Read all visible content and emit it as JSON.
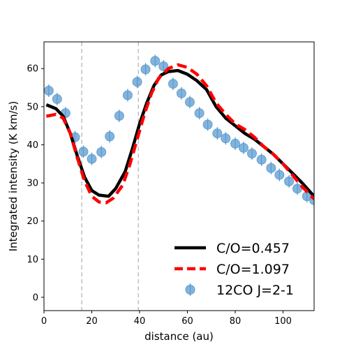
{
  "chart_data": {
    "type": "line",
    "title": "",
    "xlabel": "distance (au)",
    "ylabel": "Integrated intensity (K km/s)",
    "xlim": [
      0,
      113
    ],
    "ylim": [
      -3.5,
      67
    ],
    "xticks": [
      0,
      20,
      40,
      60,
      80,
      100
    ],
    "yticks": [
      0,
      10,
      20,
      30,
      40,
      50,
      60
    ],
    "grid": false,
    "legend_position": "lower-right",
    "vlines": [
      {
        "x": 15.8,
        "color": "#c0c0c0",
        "style": "dashed"
      },
      {
        "x": 39.5,
        "color": "#c0c0c0",
        "style": "dashed"
      }
    ],
    "series": [
      {
        "name": "C/O=0.457",
        "kind": "line",
        "color": "#000000",
        "style": "solid",
        "points": [
          [
            1,
            50.5
          ],
          [
            5,
            49.5
          ],
          [
            8,
            47.5
          ],
          [
            11,
            43
          ],
          [
            14,
            37
          ],
          [
            17,
            31.5
          ],
          [
            20,
            28
          ],
          [
            23,
            26.8
          ],
          [
            27,
            26.5
          ],
          [
            30,
            28.5
          ],
          [
            34,
            33
          ],
          [
            37,
            39
          ],
          [
            40,
            45.5
          ],
          [
            43,
            51
          ],
          [
            46,
            55.5
          ],
          [
            49,
            58.3
          ],
          [
            52,
            59.2
          ],
          [
            56,
            59.5
          ],
          [
            60,
            58.5
          ],
          [
            64,
            56.8
          ],
          [
            68,
            54.5
          ],
          [
            72,
            50
          ],
          [
            76,
            47
          ],
          [
            80,
            45
          ],
          [
            84,
            43
          ],
          [
            88,
            41.5
          ],
          [
            92,
            39.5
          ],
          [
            96,
            37.5
          ],
          [
            100,
            35
          ],
          [
            104,
            32.5
          ],
          [
            108,
            30
          ],
          [
            113,
            26.5
          ]
        ]
      },
      {
        "name": "C/O=1.097",
        "kind": "line",
        "color": "#ff0000",
        "style": "dashed",
        "points": [
          [
            1,
            47.5
          ],
          [
            5,
            48
          ],
          [
            8,
            47
          ],
          [
            11,
            43
          ],
          [
            14,
            36.5
          ],
          [
            17,
            30.5
          ],
          [
            20,
            26.5
          ],
          [
            23,
            25
          ],
          [
            26,
            24.8
          ],
          [
            29,
            26
          ],
          [
            33,
            29.5
          ],
          [
            36,
            35
          ],
          [
            39,
            41.5
          ],
          [
            42,
            48
          ],
          [
            45,
            53.5
          ],
          [
            48,
            57.5
          ],
          [
            52,
            60
          ],
          [
            56,
            61
          ],
          [
            60,
            60.3
          ],
          [
            64,
            58.5
          ],
          [
            68,
            55.5
          ],
          [
            72,
            51
          ],
          [
            76,
            48
          ],
          [
            80,
            45.5
          ],
          [
            84,
            44
          ],
          [
            88,
            42
          ],
          [
            92,
            39.5
          ],
          [
            96,
            37.5
          ],
          [
            100,
            35
          ],
          [
            104,
            32
          ],
          [
            108,
            29
          ],
          [
            113,
            25.8
          ]
        ]
      },
      {
        "name": "12CO J=2-1",
        "kind": "scatter",
        "color": "#5b9bd0",
        "points": [
          [
            2,
            54.2
          ],
          [
            5.5,
            52
          ],
          [
            9,
            48.3
          ],
          [
            13,
            42
          ],
          [
            16.5,
            38.2
          ],
          [
            20,
            36.3
          ],
          [
            24,
            38.1
          ],
          [
            27.5,
            42.2
          ],
          [
            31.5,
            47.6
          ],
          [
            35,
            53
          ],
          [
            39,
            56.5
          ],
          [
            42.5,
            59.8
          ],
          [
            46.5,
            62
          ],
          [
            50,
            60.6
          ],
          [
            54,
            56
          ],
          [
            57.5,
            53.5
          ],
          [
            61,
            51.2
          ],
          [
            65,
            48.3
          ],
          [
            68.5,
            45.3
          ],
          [
            72.5,
            43
          ],
          [
            76,
            41.7
          ],
          [
            80,
            40.3
          ],
          [
            83.5,
            39.2
          ],
          [
            87,
            37.7
          ],
          [
            91,
            36.1
          ],
          [
            95,
            33.9
          ],
          [
            98.5,
            32.1
          ],
          [
            102.5,
            30.4
          ],
          [
            106,
            28.5
          ],
          [
            110,
            26.5
          ],
          [
            113,
            25.5
          ]
        ]
      }
    ]
  }
}
